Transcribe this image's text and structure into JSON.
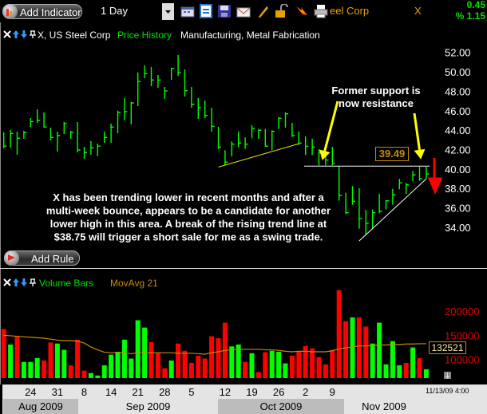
{
  "toolbar": {
    "add_indicator_label": "Add Indicator",
    "period_value": "1 Day",
    "symbol_name_partial": "eel Corp",
    "symbol": "X",
    "change": "0.45",
    "change_pct": "% 1.15",
    "icons": [
      "calendar-icon",
      "window-icon",
      "save-icon",
      "mail-icon",
      "pencil-icon",
      "lock-icon",
      "alert-icon",
      "print-icon"
    ]
  },
  "price_panel": {
    "title": "X, US Steel Corp",
    "study": "Price History",
    "industry": "Manufacturing, Metal Fabrication",
    "last_price": "39.49",
    "add_rule_label": "Add Rule"
  },
  "volume_panel": {
    "study": "Volume Bars",
    "overlay": "MovAvg 21",
    "last_ma": "132521"
  },
  "time_axis": {
    "day_labels": [
      {
        "label": "24",
        "bar": 5
      },
      {
        "label": "31",
        "bar": 9
      },
      {
        "label": "8",
        "bar": 13
      },
      {
        "label": "14",
        "bar": 17
      },
      {
        "label": "21",
        "bar": 21
      },
      {
        "label": "28",
        "bar": 25
      },
      {
        "label": "5",
        "bar": 29
      },
      {
        "label": "12",
        "bar": 34
      },
      {
        "label": "19",
        "bar": 38
      },
      {
        "label": "26",
        "bar": 42
      },
      {
        "label": "2",
        "bar": 46
      },
      {
        "label": "9",
        "bar": 50
      }
    ],
    "timestamp": "11/13/09 4:00",
    "months": [
      "Aug 2009",
      "Sep 2009",
      "Oct 2009",
      "Nov 2009"
    ]
  },
  "colors": {
    "up": "#00ff00",
    "down": "#ff0000",
    "ma": "#c88a00",
    "support": "#ffff00",
    "annotation_arrow": "#ffff00",
    "sell_arrow": "#ff0000"
  },
  "chart_data": [
    {
      "type": "ohlc",
      "ylim": [
        33,
        53
      ],
      "yticks": [
        "52.00",
        "50.00",
        "48.00",
        "46.00",
        "44.00",
        "42.00",
        "40.00",
        "38.00",
        "36.00",
        "34.00"
      ],
      "fields": [
        "high",
        "low",
        "close"
      ],
      "bars": [
        [
          43.77,
          42.13,
          42.35
        ],
        [
          44.01,
          42.21,
          43.66
        ],
        [
          43.85,
          41.47,
          43.17
        ],
        [
          43.93,
          43.11,
          43.74
        ],
        [
          45.24,
          44.33,
          44.89
        ],
        [
          46.14,
          44.75,
          45.0
        ],
        [
          45.82,
          44.26,
          44.32
        ],
        [
          44.26,
          42.95,
          43.25
        ],
        [
          43.85,
          41.8,
          43.44
        ],
        [
          44.83,
          43.6,
          44.67
        ],
        [
          43.93,
          43.11,
          43.77
        ],
        [
          44.83,
          41.71,
          41.96
        ],
        [
          42.29,
          41.06,
          41.69
        ],
        [
          42.87,
          41.47,
          42.18
        ],
        [
          42.62,
          41.31,
          42.35
        ],
        [
          43.85,
          42.7,
          43.25
        ],
        [
          44.67,
          42.7,
          44.32
        ],
        [
          46.01,
          43.68,
          45.82
        ],
        [
          47.3,
          45.0,
          45.9
        ],
        [
          46.89,
          44.59,
          46.8
        ],
        [
          49.93,
          46.47,
          49.0
        ],
        [
          50.67,
          49.35,
          49.82
        ],
        [
          50.5,
          48.53,
          49.16
        ],
        [
          49.68,
          48.36,
          49.16
        ],
        [
          48.44,
          47.21,
          48.03
        ],
        [
          50.42,
          49.18,
          50.36
        ],
        [
          51.73,
          49.59,
          49.9
        ],
        [
          50.25,
          47.46,
          48.06
        ],
        [
          48.44,
          46.31,
          46.64
        ],
        [
          47.3,
          45.16,
          46.31
        ],
        [
          47.05,
          45.24,
          45.49
        ],
        [
          46.31,
          43.85,
          44.4
        ],
        [
          44.34,
          42.05,
          42.26
        ],
        [
          41.93,
          40.37,
          40.7
        ],
        [
          42.84,
          41.3,
          42.56
        ],
        [
          43.87,
          42.23,
          42.67
        ],
        [
          43.25,
          42.07,
          42.56
        ],
        [
          44.53,
          43.17,
          44.18
        ],
        [
          44.12,
          43.11,
          43.99
        ],
        [
          44.12,
          42.29,
          42.35
        ],
        [
          43.99,
          41.93,
          43.87
        ],
        [
          45.35,
          44.12,
          45.22
        ],
        [
          45.84,
          44.26,
          45.68
        ],
        [
          44.75,
          43.3,
          43.44
        ],
        [
          43.85,
          42.48,
          42.67
        ],
        [
          43.36,
          41.44,
          42.34
        ],
        [
          43.11,
          41.44,
          42.26
        ],
        [
          42.02,
          40.37,
          41.66
        ],
        [
          41.85,
          40.37,
          40.92
        ],
        [
          42.26,
          40.37,
          40.56
        ],
        [
          40.29,
          36.73,
          37.28
        ],
        [
          37.55,
          35.37,
          35.5
        ],
        [
          38.24,
          36.32,
          36.68
        ],
        [
          38.02,
          33.86,
          34.9
        ],
        [
          35.78,
          33.17,
          34.41
        ],
        [
          35.83,
          33.86,
          35.5
        ],
        [
          37.42,
          35.45,
          35.64
        ],
        [
          36.81,
          35.83,
          36.73
        ],
        [
          37.96,
          36.32,
          37.34
        ],
        [
          38.98,
          37.91,
          38.57
        ],
        [
          38.57,
          37.42,
          38.37
        ],
        [
          39.8,
          38.73,
          39.39
        ],
        [
          40.23,
          38.78,
          39.0
        ],
        [
          40.23,
          39.0,
          39.49
        ]
      ],
      "lines": [
        {
          "kind": "support-trendline",
          "color": "#ffff00",
          "from": {
            "bar": 33,
            "price": 40.2
          },
          "to": {
            "bar": 45,
            "price": 42.6
          }
        },
        {
          "kind": "resistance-level",
          "color": "#ffffff",
          "from": {
            "bar": 45.8,
            "price": 40.3
          },
          "to": {
            "bar": 64.5,
            "price": 40.3
          }
        },
        {
          "kind": "rising-trendline",
          "color": "#ffffff",
          "from": {
            "bar": 54,
            "price": 32.6
          },
          "to": {
            "bar": 64,
            "price": 38.98
          }
        }
      ],
      "annotations": [
        {
          "text_lines": [
            "Former support is",
            "now resistance"
          ],
          "arrows": [
            {
              "to": {
                "bar": 48.5,
                "price": 40.9
              }
            },
            {
              "to": {
                "bar": 63.2,
                "price": 41.0
              }
            }
          ]
        },
        {
          "text_lines": [
            "X has been trending lower in recent months and after a",
            "multi-week bounce, appears to be a candidate for another",
            "lower high in this area.  A break of the rising trend line at",
            "$38.75 will trigger a short sale for me as a swing trade."
          ]
        }
      ]
    },
    {
      "type": "bar",
      "yticks": [
        "200000",
        "150000",
        "100000"
      ],
      "values": [
        163000,
        131000,
        147000,
        95000,
        95000,
        103000,
        98000,
        135000,
        133000,
        120000,
        88000,
        141000,
        77000,
        72000,
        67000,
        88000,
        110000,
        116000,
        141000,
        102000,
        181000,
        166000,
        136000,
        113000,
        82000,
        98000,
        133000,
        118000,
        93000,
        108000,
        102000,
        148000,
        144000,
        176000,
        127000,
        131000,
        95000,
        113000,
        74000,
        115000,
        118000,
        116000,
        92000,
        108000,
        116000,
        128000,
        123000,
        105000,
        90000,
        120000,
        243000,
        179000,
        187000,
        187000,
        168000,
        133000,
        176000,
        90000,
        138000,
        88000,
        93000,
        125000,
        103000,
        80000
      ],
      "direction": [
        "down",
        "up",
        "down",
        "up",
        "up",
        "up",
        "down",
        "down",
        "up",
        "up",
        "down",
        "down",
        "down",
        "up",
        "up",
        "up",
        "up",
        "up",
        "up",
        "up",
        "up",
        "up",
        "down",
        "down",
        "down",
        "up",
        "down",
        "down",
        "down",
        "down",
        "down",
        "down",
        "down",
        "down",
        "up",
        "up",
        "down",
        "up",
        "down",
        "down",
        "up",
        "up",
        "up",
        "down",
        "down",
        "down",
        "down",
        "down",
        "down",
        "down",
        "down",
        "down",
        "up",
        "down",
        "down",
        "up",
        "up",
        "up",
        "up",
        "up",
        "down",
        "up",
        "down",
        "up"
      ],
      "moving_average": {
        "name": "MovAvg 21",
        "values": [
          150000,
          149000,
          148000,
          147000,
          146000,
          145000,
          144000,
          142000,
          140000,
          139000,
          139000,
          138000,
          134000,
          126000,
          120000,
          115000,
          114000,
          114000,
          114000,
          112000,
          114000,
          114000,
          114000,
          114000,
          114000,
          114000,
          113000,
          113000,
          113000,
          112000,
          111000,
          114000,
          116000,
          119000,
          120000,
          121000,
          121000,
          121000,
          121000,
          120000,
          120000,
          119000,
          117000,
          116000,
          117000,
          117000,
          116000,
          116000,
          116000,
          118000,
          122000,
          124000,
          126000,
          128000,
          128000,
          129000,
          130000,
          130000,
          131000,
          131000,
          132000,
          132000,
          132521,
          132521
        ]
      }
    }
  ]
}
